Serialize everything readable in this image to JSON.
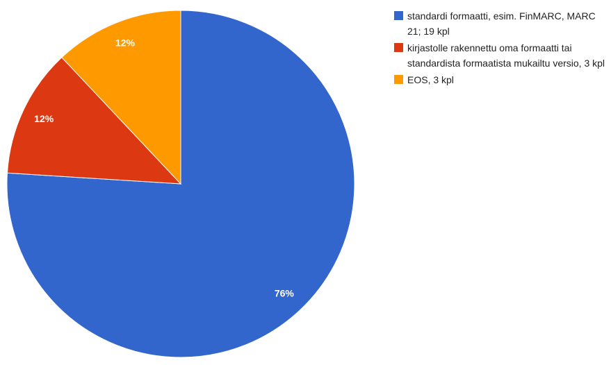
{
  "chart_data": {
    "type": "pie",
    "categories": [
      "standardi formaatti, esim. FinMARC, MARC 21; 19 kpl",
      "kirjastolle rakennettu oma formaatti tai standardista formaatista mukailtu versio, 3 kpl",
      "EOS, 3 kpl"
    ],
    "values": [
      76,
      12,
      12
    ],
    "value_labels": [
      "76%",
      "12%",
      "12%"
    ],
    "colors": [
      "#3366cc",
      "#dc3912",
      "#ff9900"
    ],
    "legend": "right"
  }
}
